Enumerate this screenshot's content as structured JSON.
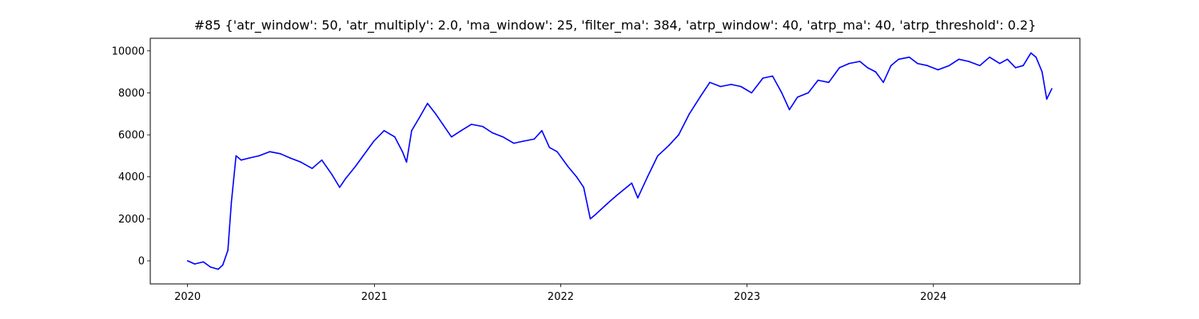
{
  "chart_data": {
    "type": "line",
    "title": "#85 {'atr_window': 50, 'atr_multiply': 2.0, 'ma_window': 25, 'filter_ma': 384, 'atrp_window': 40, 'atrp_ma': 40, 'atrp_threshold': 0.2}",
    "xlabel": "",
    "ylabel": "",
    "x_ticks": [
      "2020",
      "2021",
      "2022",
      "2023",
      "2024"
    ],
    "y_ticks": [
      0,
      2000,
      4000,
      6000,
      8000,
      10000
    ],
    "xlim": [
      "2019-10-20",
      "2024-10-14"
    ],
    "ylim": [
      -1100,
      10600
    ],
    "grid": false,
    "legend": "none",
    "series": [
      {
        "color": "#0000ff",
        "x": [
          "2020-01-01",
          "2020-01-15",
          "2020-02-01",
          "2020-02-15",
          "2020-03-01",
          "2020-03-10",
          "2020-03-20",
          "2020-03-27",
          "2020-04-05",
          "2020-04-15",
          "2020-05-01",
          "2020-05-20",
          "2020-06-10",
          "2020-07-01",
          "2020-07-20",
          "2020-08-10",
          "2020-09-01",
          "2020-09-20",
          "2020-10-10",
          "2020-10-25",
          "2020-11-05",
          "2020-11-25",
          "2020-12-10",
          "2020-12-31",
          "2021-01-20",
          "2021-02-10",
          "2021-02-25",
          "2021-03-05",
          "2021-03-15",
          "2021-04-01",
          "2021-04-15",
          "2021-05-01",
          "2021-05-15",
          "2021-06-01",
          "2021-06-20",
          "2021-07-10",
          "2021-08-01",
          "2021-08-20",
          "2021-09-10",
          "2021-10-01",
          "2021-10-20",
          "2021-11-10",
          "2021-11-25",
          "2021-12-10",
          "2021-12-25",
          "2022-01-15",
          "2022-02-01",
          "2022-02-15",
          "2022-02-28",
          "2022-03-10",
          "2022-04-01",
          "2022-04-20",
          "2022-05-10",
          "2022-05-20",
          "2022-06-01",
          "2022-06-20",
          "2022-07-10",
          "2022-08-01",
          "2022-08-20",
          "2022-09-10",
          "2022-10-01",
          "2022-10-20",
          "2022-11-10",
          "2022-12-01",
          "2022-12-20",
          "2023-01-10",
          "2023-02-01",
          "2023-02-20",
          "2023-03-10",
          "2023-03-25",
          "2023-04-10",
          "2023-05-01",
          "2023-05-20",
          "2023-06-10",
          "2023-07-01",
          "2023-07-20",
          "2023-08-10",
          "2023-08-25",
          "2023-09-10",
          "2023-09-25",
          "2023-10-10",
          "2023-10-25",
          "2023-11-15",
          "2023-12-01",
          "2023-12-20",
          "2024-01-10",
          "2024-02-01",
          "2024-02-20",
          "2024-03-10",
          "2024-04-01",
          "2024-04-20",
          "2024-05-10",
          "2024-05-25",
          "2024-06-10",
          "2024-06-25",
          "2024-07-10",
          "2024-07-20",
          "2024-08-01",
          "2024-08-10",
          "2024-08-20"
        ],
        "values": [
          0,
          -150,
          -50,
          -300,
          -400,
          -200,
          500,
          2800,
          5000,
          4800,
          4900,
          5000,
          5200,
          5100,
          4900,
          4700,
          4400,
          4800,
          4100,
          3500,
          3900,
          4500,
          5000,
          5700,
          6200,
          5900,
          5200,
          4700,
          6200,
          6900,
          7500,
          7000,
          6500,
          5900,
          6200,
          6500,
          6400,
          6100,
          5900,
          5600,
          5700,
          5800,
          6200,
          5400,
          5200,
          4500,
          4000,
          3500,
          2000,
          2200,
          2700,
          3100,
          3500,
          3700,
          3000,
          4000,
          5000,
          5500,
          6000,
          7000,
          7800,
          8500,
          8300,
          8400,
          8300,
          8000,
          8700,
          8800,
          8000,
          7200,
          7800,
          8000,
          8600,
          8500,
          9200,
          9400,
          9500,
          9200,
          9000,
          8500,
          9300,
          9600,
          9700,
          9400,
          9300,
          9100,
          9300,
          9600,
          9500,
          9300,
          9700,
          9400,
          9600,
          9200,
          9300,
          9900,
          9700,
          9000,
          7700,
          8200
        ]
      }
    ]
  }
}
